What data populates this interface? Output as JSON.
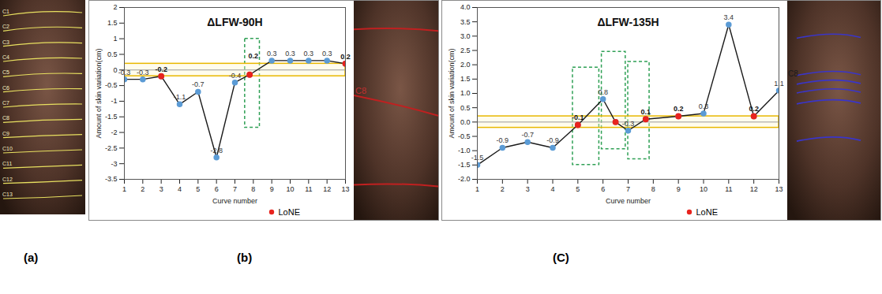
{
  "figure": {
    "panel_labels": [
      "(a)",
      "(b)",
      "(C)"
    ],
    "photos": [
      {
        "curve_labels": [
          "C1",
          "C2",
          "C3",
          "C4",
          "C5",
          "C6",
          "C7",
          "C8",
          "C9",
          "C10",
          "C11",
          "C12",
          "C13"
        ]
      },
      {
        "curve_labels": [
          "C8"
        ]
      },
      {
        "curve_labels": [
          "C8"
        ]
      }
    ]
  },
  "chart_data": [
    {
      "type": "line",
      "title": "ΔLFW-90H",
      "x_label": "Curve number",
      "y_label": "Amount of skin variation(cm)",
      "xlim": [
        1,
        13
      ],
      "xticks": [
        1,
        2,
        3,
        4,
        5,
        6,
        7,
        8,
        9,
        10,
        11,
        12,
        13
      ],
      "ylim": [
        -3.5,
        2
      ],
      "yticks": [
        -3.5,
        -3,
        -2.5,
        -2,
        -1.5,
        -1,
        -0.5,
        0,
        0.5,
        1,
        1.5,
        2
      ],
      "grid": false,
      "legend": "bottom-right",
      "data_labels": true,
      "series": [
        {
          "type": "line",
          "color": "#1a1a1a",
          "marker": "circle",
          "x": [
            1,
            2,
            3,
            4,
            5,
            6,
            7,
            7.8,
            9,
            10,
            11,
            12,
            13
          ],
          "values": [
            -0.3,
            -0.3,
            -0.2,
            -1.1,
            -0.7,
            -2.8,
            -0.4,
            -0.15,
            0.3,
            0.3,
            0.3,
            0.3,
            0.2
          ],
          "value_labels": [
            "-0.3",
            "-0.3",
            "-0.2",
            "-1.1",
            "-0.7",
            "-2.8",
            "-0.4",
            null,
            "0.3",
            "0.3",
            "0.3",
            "0.3",
            "0.2"
          ]
        },
        {
          "type": "scatter",
          "name": "LoNE",
          "color": "#e8231e",
          "marker": "circle",
          "x": [
            3,
            7.8,
            13
          ],
          "values": [
            -0.2,
            -0.15,
            0.2
          ]
        }
      ],
      "annotations": [
        {
          "text": "0.2",
          "x": 8,
          "y": 0.45
        }
      ],
      "threshold_band": [
        -0.2,
        0.2
      ],
      "highlight_boxes": [
        {
          "x": [
            7.55,
            8.35
          ],
          "y": [
            -1.85,
            1.0
          ]
        }
      ]
    },
    {
      "type": "line",
      "title": "ΔLFW-135H",
      "x_label": "Curve number",
      "y_label": "Amount of skin variation(cm)",
      "xlim": [
        1,
        13
      ],
      "xticks": [
        1,
        2,
        3,
        4,
        5,
        6,
        7,
        8,
        9,
        10,
        11,
        12,
        13
      ],
      "ylim": [
        -2,
        4
      ],
      "yticks": [
        {
          "value": -2,
          "label": "-2.0"
        },
        -1.5,
        {
          "value": -1,
          "label": "-1.0"
        },
        -0.5,
        {
          "value": 0,
          "label": "0.0"
        },
        0.5,
        {
          "value": 1,
          "label": "1.0"
        },
        1.5,
        {
          "value": 2,
          "label": "2.0"
        },
        2.5,
        {
          "value": 3,
          "label": "3.0"
        },
        3.5,
        {
          "value": 4,
          "label": "4.0"
        }
      ],
      "grid": false,
      "legend": "bottom-right",
      "data_labels": true,
      "series": [
        {
          "type": "line",
          "color": "#1a1a1a",
          "marker": "circle",
          "x": [
            1,
            2,
            3,
            4,
            5,
            6,
            6.5,
            7,
            7.7,
            9,
            10,
            11,
            12,
            13
          ],
          "values": [
            -1.5,
            -0.9,
            -0.7,
            -0.9,
            -0.1,
            0.8,
            0.0,
            -0.3,
            0.1,
            0.2,
            0.3,
            3.4,
            0.2,
            1.1
          ],
          "value_labels": [
            "-1.5",
            "-0.9",
            "-0.7",
            "-0.9",
            "-0.1",
            "0.8",
            null,
            "-0.3",
            "0.1",
            "0.2",
            "0.3",
            "3.4",
            "0.2",
            "1.1"
          ]
        },
        {
          "type": "scatter",
          "name": "LoNE",
          "color": "#e8231e",
          "marker": "circle",
          "x": [
            5,
            6.5,
            7.7,
            9,
            12
          ],
          "values": [
            -0.1,
            0.0,
            0.1,
            0.2,
            0.2
          ]
        }
      ],
      "threshold_band": [
        -0.2,
        0.2
      ],
      "highlight_boxes": [
        {
          "x": [
            4.8,
            5.85
          ],
          "y": [
            -1.5,
            1.9
          ]
        },
        {
          "x": [
            5.95,
            6.9
          ],
          "y": [
            -0.95,
            2.45
          ]
        },
        {
          "x": [
            7.0,
            7.85
          ],
          "y": [
            -1.3,
            2.1
          ]
        }
      ]
    }
  ]
}
